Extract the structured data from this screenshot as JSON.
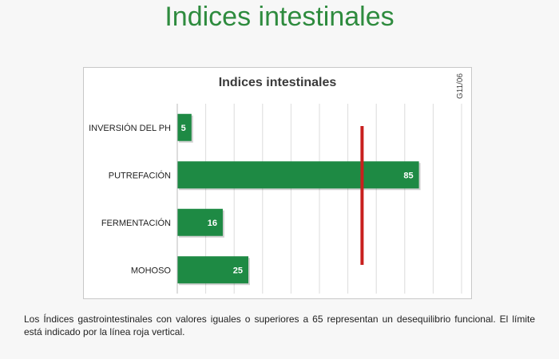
{
  "page": {
    "title": "Indices intestinales",
    "footnote": "Los Índices gastrointestinales con valores iguales o superiores a 65 representan un desequilibrio funcional. El límite está indicado por la línea roja vertical."
  },
  "chart_data": {
    "type": "bar",
    "orientation": "horizontal",
    "title": "Indices intestinales",
    "code_label": "G11/06",
    "categories": [
      "INVERSIÓN DEL PH",
      "PUTREFACIÓN",
      "FERMENTACIÓN",
      "MOHOSO"
    ],
    "values": [
      5,
      85,
      16,
      25
    ],
    "data_labels": [
      "5",
      "85",
      "16",
      "25"
    ],
    "xlim": [
      0,
      100
    ],
    "threshold": 65,
    "grid": "vertical",
    "bar_color": "#1e8a44",
    "threshold_color": "#c8201e"
  }
}
